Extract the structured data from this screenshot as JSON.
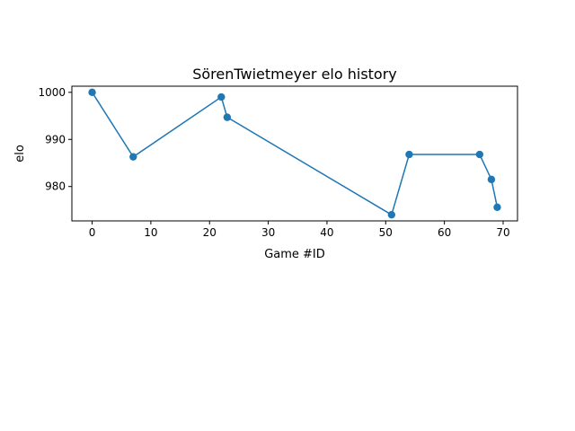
{
  "chart_data": {
    "type": "line",
    "title": "SörenTwietmeyer elo history",
    "xlabel": "Game #ID",
    "ylabel": "elo",
    "xlim": [
      -3.45,
      72.45
    ],
    "ylim": [
      972.7,
      1001.3
    ],
    "xticks": [
      0,
      10,
      20,
      30,
      40,
      50,
      60,
      70
    ],
    "yticks": [
      980,
      990,
      1000
    ],
    "grid": false,
    "series_color": "#1f77b4",
    "x": [
      0,
      7,
      22,
      23,
      51,
      54,
      66,
      68,
      69
    ],
    "y": [
      1000.0,
      986.3,
      999.0,
      994.7,
      974.0,
      986.8,
      986.8,
      981.5,
      975.6
    ]
  }
}
